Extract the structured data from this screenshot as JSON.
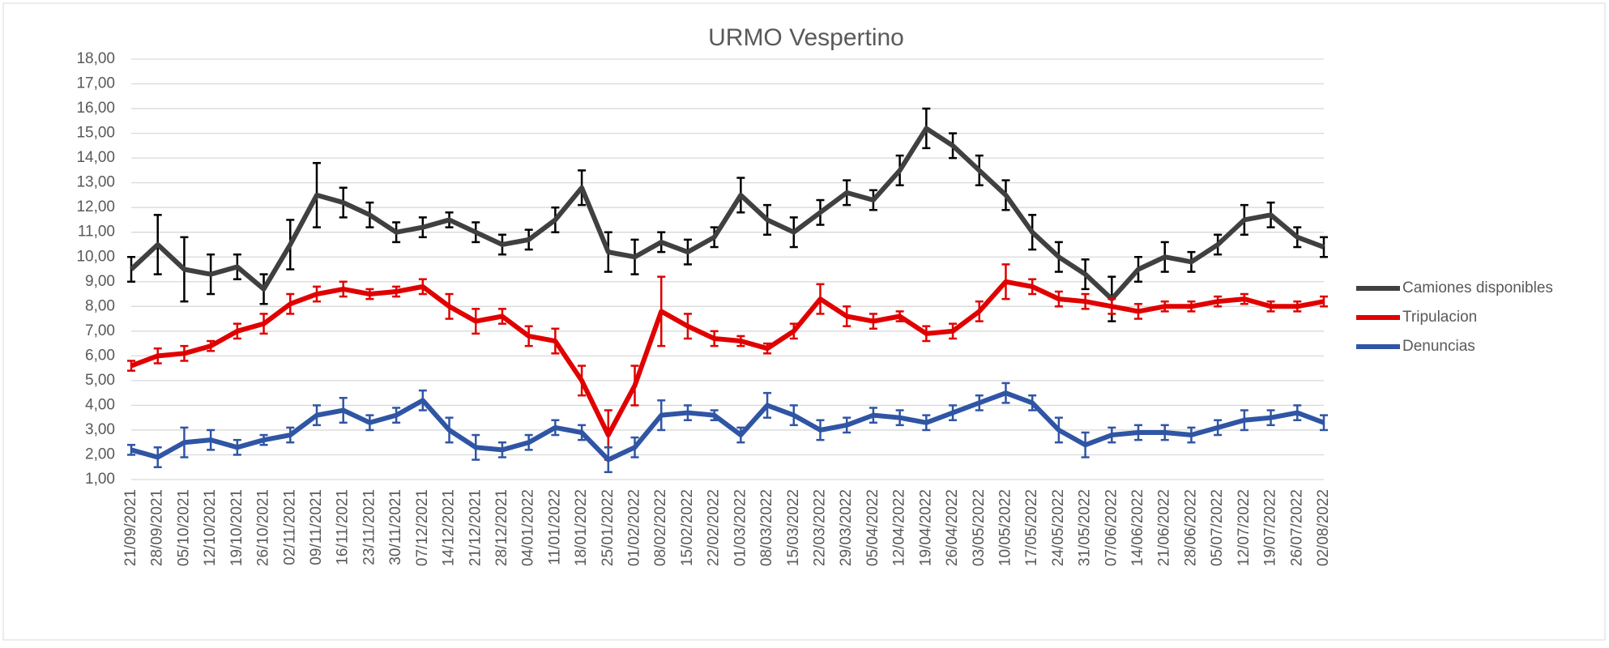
{
  "chart_data": {
    "type": "line",
    "title": "URMO Vespertino",
    "categories": [
      "21/09/2021",
      "28/09/2021",
      "05/10/2021",
      "12/10/2021",
      "19/10/2021",
      "26/10/2021",
      "02/11/2021",
      "09/11/2021",
      "16/11/2021",
      "23/11/2021",
      "30/11/2021",
      "07/12/2021",
      "14/12/2021",
      "21/12/2021",
      "28/12/2021",
      "04/01/2022",
      "11/01/2022",
      "18/01/2022",
      "25/01/2022",
      "01/02/2022",
      "08/02/2022",
      "15/02/2022",
      "22/02/2022",
      "01/03/2022",
      "08/03/2022",
      "15/03/2022",
      "22/03/2022",
      "29/03/2022",
      "05/04/2022",
      "12/04/2022",
      "19/04/2022",
      "26/04/2022",
      "03/05/2022",
      "10/05/2022",
      "17/05/2022",
      "24/05/2022",
      "31/05/2022",
      "07/06/2022",
      "14/06/2022",
      "21/06/2022",
      "28/06/2022",
      "05/07/2022",
      "12/07/2022",
      "19/07/2022",
      "26/07/2022",
      "02/08/2022"
    ],
    "series": [
      {
        "name": "Camiones disponibles",
        "color": "#404040",
        "values": [
          9.5,
          10.5,
          9.5,
          9.3,
          9.6,
          8.7,
          10.5,
          12.5,
          12.2,
          11.7,
          11,
          11.2,
          11.5,
          11,
          10.5,
          10.7,
          11.5,
          12.8,
          10.2,
          10,
          10.6,
          10.2,
          10.8,
          12.5,
          11.5,
          11,
          11.8,
          12.6,
          12.3,
          13.5,
          15.2,
          14.5,
          13.5,
          12.5,
          11,
          10,
          9.3,
          8.3,
          9.5,
          10,
          9.8,
          10.5,
          11.5,
          11.7,
          10.8,
          10.4
        ],
        "errors": [
          0.5,
          1.2,
          1.3,
          0.8,
          0.5,
          0.6,
          1,
          1.3,
          0.6,
          0.5,
          0.4,
          0.4,
          0.3,
          0.4,
          0.4,
          0.4,
          0.5,
          0.7,
          0.8,
          0.7,
          0.4,
          0.5,
          0.4,
          0.7,
          0.6,
          0.6,
          0.5,
          0.5,
          0.4,
          0.6,
          0.8,
          0.5,
          0.6,
          0.6,
          0.7,
          0.6,
          0.6,
          0.9,
          0.5,
          0.6,
          0.4,
          0.4,
          0.6,
          0.5,
          0.4,
          0.4
        ]
      },
      {
        "name": "Tripulacion",
        "color": "#e00000",
        "values": [
          5.6,
          6.0,
          6.1,
          6.4,
          7.0,
          7.3,
          8.1,
          8.5,
          8.7,
          8.5,
          8.6,
          8.8,
          8.0,
          7.4,
          7.6,
          6.8,
          6.6,
          5.0,
          2.8,
          4.8,
          7.8,
          7.2,
          6.7,
          6.6,
          6.3,
          7.0,
          8.3,
          7.6,
          7.4,
          7.6,
          6.9,
          7.0,
          7.8,
          9.0,
          8.8,
          8.3,
          8.2,
          8.0,
          7.8,
          8.0,
          8.0,
          8.2,
          8.3,
          8.0,
          8.0,
          8.2
        ],
        "errors": [
          0.2,
          0.3,
          0.3,
          0.2,
          0.3,
          0.4,
          0.4,
          0.3,
          0.3,
          0.2,
          0.2,
          0.3,
          0.5,
          0.5,
          0.3,
          0.4,
          0.5,
          0.6,
          1.0,
          0.8,
          1.4,
          0.5,
          0.3,
          0.2,
          0.2,
          0.3,
          0.6,
          0.4,
          0.3,
          0.2,
          0.3,
          0.3,
          0.4,
          0.7,
          0.3,
          0.3,
          0.3,
          0.3,
          0.3,
          0.2,
          0.2,
          0.2,
          0.2,
          0.2,
          0.2,
          0.2
        ]
      },
      {
        "name": "Denuncias",
        "color": "#2f55a4",
        "values": [
          2.2,
          1.9,
          2.5,
          2.6,
          2.3,
          2.6,
          2.8,
          3.6,
          3.8,
          3.3,
          3.6,
          4.2,
          3.0,
          2.3,
          2.2,
          2.5,
          3.1,
          2.9,
          1.8,
          2.3,
          3.6,
          3.7,
          3.6,
          2.8,
          4.0,
          3.6,
          3.0,
          3.2,
          3.6,
          3.5,
          3.3,
          3.7,
          4.1,
          4.5,
          4.1,
          3.0,
          2.4,
          2.8,
          2.9,
          2.9,
          2.8,
          3.1,
          3.4,
          3.5,
          3.7,
          3.3
        ],
        "errors": [
          0.2,
          0.4,
          0.6,
          0.4,
          0.3,
          0.2,
          0.3,
          0.4,
          0.5,
          0.3,
          0.3,
          0.4,
          0.5,
          0.5,
          0.3,
          0.3,
          0.3,
          0.3,
          0.5,
          0.4,
          0.6,
          0.3,
          0.2,
          0.3,
          0.5,
          0.4,
          0.4,
          0.3,
          0.3,
          0.3,
          0.3,
          0.3,
          0.3,
          0.4,
          0.3,
          0.5,
          0.5,
          0.3,
          0.3,
          0.3,
          0.3,
          0.3,
          0.4,
          0.3,
          0.3,
          0.3
        ]
      }
    ],
    "ylim": [
      1,
      18
    ],
    "yticks": [
      {
        "value": 1,
        "label": "1,00"
      },
      {
        "value": 2,
        "label": "2,00"
      },
      {
        "value": 3,
        "label": "3,00"
      },
      {
        "value": 4,
        "label": "4,00"
      },
      {
        "value": 5,
        "label": "5,00"
      },
      {
        "value": 6,
        "label": "6,00"
      },
      {
        "value": 7,
        "label": "7,00"
      },
      {
        "value": 8,
        "label": "8,00"
      },
      {
        "value": 9,
        "label": "9,00"
      },
      {
        "value": 10,
        "label": "10,00"
      },
      {
        "value": 11,
        "label": "11,00"
      },
      {
        "value": 12,
        "label": "12,00"
      },
      {
        "value": 13,
        "label": "13,00"
      },
      {
        "value": 14,
        "label": "14,00"
      },
      {
        "value": 15,
        "label": "15,00"
      },
      {
        "value": 16,
        "label": "16,00"
      },
      {
        "value": 17,
        "label": "17,00"
      },
      {
        "value": 18,
        "label": "18,00"
      }
    ],
    "grid": true,
    "legend": "right"
  }
}
